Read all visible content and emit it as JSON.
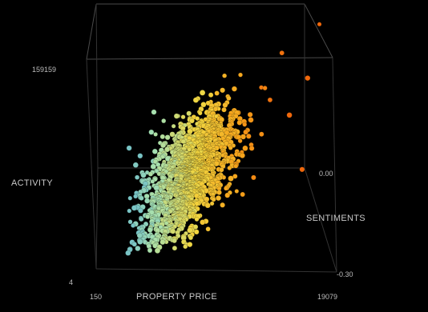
{
  "chart_data": {
    "type": "scatter",
    "dimensions": "3d",
    "title": "",
    "xlabel": "PROPERTY PRICE",
    "ylabel": "ACTIVITY",
    "zlabel": "SENTIMENTS",
    "x_ticks": [
      "150",
      "19079"
    ],
    "y_ticks": [
      "4",
      "159159"
    ],
    "z_ticks": [
      "-0.30",
      "0.00"
    ],
    "xlim": [
      150,
      19079
    ],
    "ylim": [
      4,
      159159
    ],
    "zlim": [
      -0.3,
      0.3
    ],
    "grid": false,
    "color_encoding": "gradient-by-x",
    "colors": [
      "#3f9fe0",
      "#a6e0b0",
      "#f2d640",
      "#f5a21a",
      "#f0680c"
    ],
    "notable_points": [
      {
        "x": 18800,
        "y": 159159,
        "z": 0.25
      },
      {
        "x": 15500,
        "y": 140000,
        "z": 0.18
      },
      {
        "x": 17800,
        "y": 118000,
        "z": 0.22
      },
      {
        "x": 16500,
        "y": 95000,
        "z": 0.12
      },
      {
        "x": 17900,
        "y": 55000,
        "z": 0.08
      },
      {
        "x": 3800,
        "y": 15000,
        "z": -0.15
      },
      {
        "x": 3300,
        "y": 60000,
        "z": -0.1
      },
      {
        "x": 4200,
        "y": 105000,
        "z": -0.05
      }
    ]
  }
}
